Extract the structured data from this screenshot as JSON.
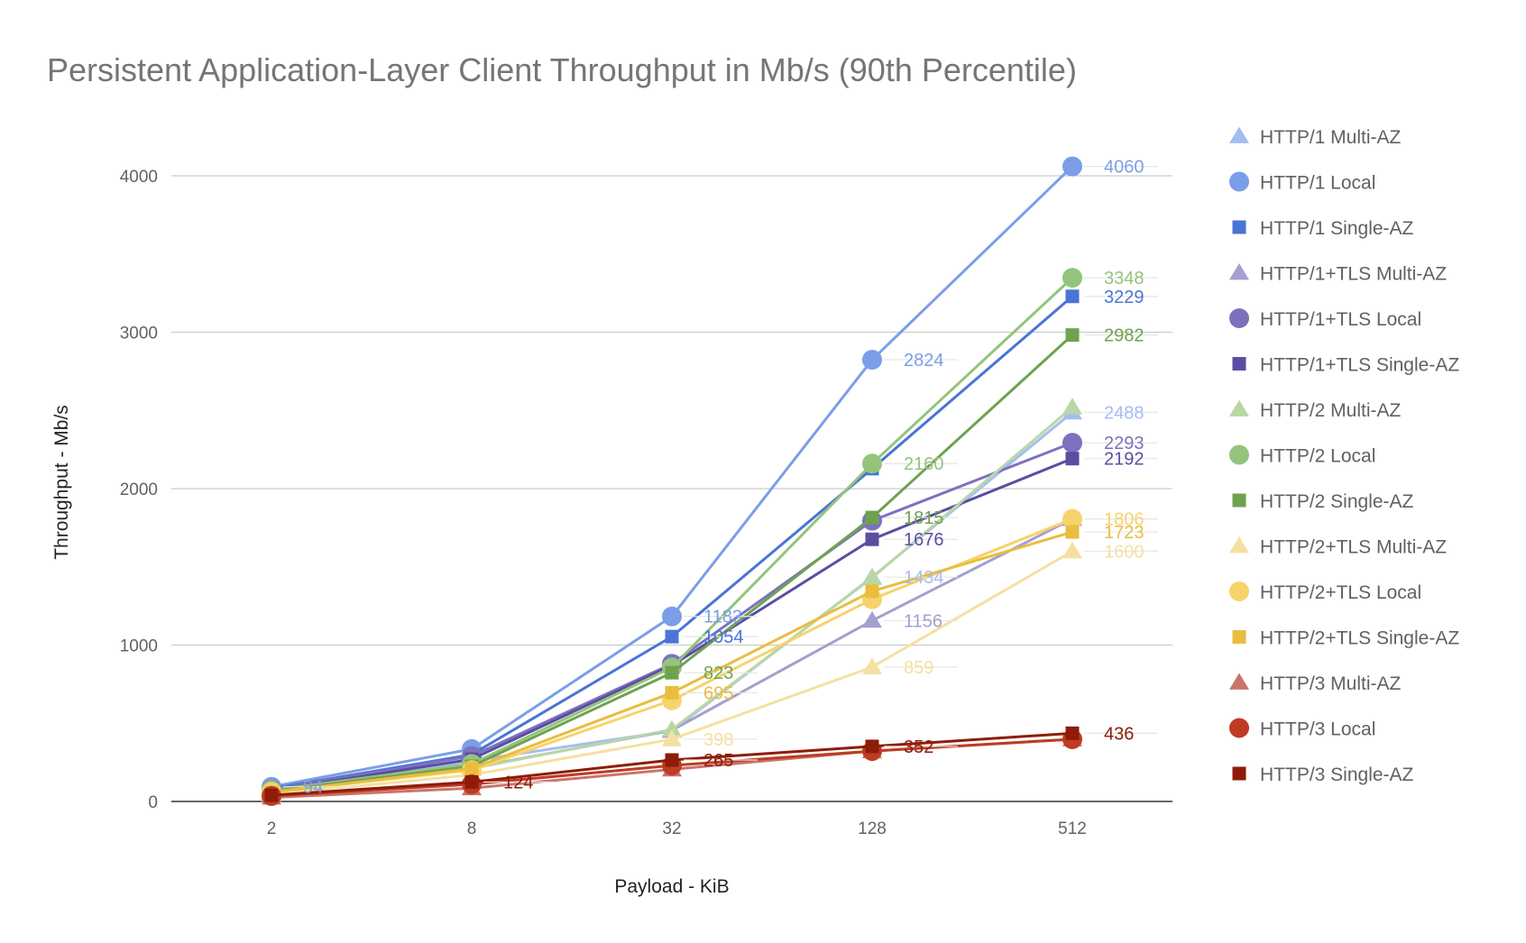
{
  "chart_data": {
    "type": "line",
    "title": "Persistent Application-Layer Client Throughput in Mb/s (90th Percentile)",
    "xlabel": "Payload - KiB",
    "ylabel": "Throughput - Mb/s",
    "categories": [
      "2",
      "8",
      "32",
      "128",
      "512"
    ],
    "ylim": [
      0,
      4000
    ],
    "yticks": [
      "0",
      "1000",
      "2000",
      "3000",
      "4000"
    ],
    "grid": true,
    "legend_position": "right",
    "series": [
      {
        "name": "HTTP/1 Multi-AZ",
        "color": "#a4bdf2",
        "marker": "triangle",
        "values": [
          60,
          260,
          451,
          1434,
          2488
        ]
      },
      {
        "name": "HTTP/1 Local",
        "color": "#7b9ee8",
        "marker": "circle",
        "values": [
          94,
          335,
          1183,
          2824,
          4060
        ]
      },
      {
        "name": "HTTP/1 Single-AZ",
        "color": "#4a74d6",
        "marker": "square",
        "values": [
          82,
          300,
          1054,
          2128,
          3229
        ]
      },
      {
        "name": "HTTP/1+TLS Multi-AZ",
        "color": "#a49fcf",
        "marker": "triangle",
        "values": [
          52,
          215,
          455,
          1156,
          1807
        ]
      },
      {
        "name": "HTTP/1+TLS Local",
        "color": "#7d71bf",
        "marker": "circle",
        "values": [
          75,
          290,
          880,
          1795,
          2293
        ]
      },
      {
        "name": "HTTP/1+TLS Single-AZ",
        "color": "#5a4ea2",
        "marker": "square",
        "values": [
          70,
          270,
          870,
          1676,
          2192
        ]
      },
      {
        "name": "HTTP/2 Multi-AZ",
        "color": "#b8d7a5",
        "marker": "triangle",
        "values": [
          55,
          210,
          460,
          1430,
          2520
        ]
      },
      {
        "name": "HTTP/2 Local",
        "color": "#94c47c",
        "marker": "circle",
        "values": [
          72,
          240,
          857,
          2160,
          3348
        ]
      },
      {
        "name": "HTTP/2 Single-AZ",
        "color": "#6fa24f",
        "marker": "square",
        "values": [
          65,
          225,
          823,
          1815,
          2982
        ]
      },
      {
        "name": "HTTP/2+TLS Multi-AZ",
        "color": "#f5e0a0",
        "marker": "triangle",
        "values": [
          45,
          170,
          398,
          859,
          1600
        ]
      },
      {
        "name": "HTTP/2+TLS Local",
        "color": "#f6d36b",
        "marker": "circle",
        "values": [
          60,
          200,
          647,
          1293,
          1806
        ]
      },
      {
        "name": "HTTP/2+TLS Single-AZ",
        "color": "#e9bd3e",
        "marker": "square",
        "values": [
          58,
          211,
          695,
          1344,
          1723
        ]
      },
      {
        "name": "HTTP/3 Multi-AZ",
        "color": "#c9746a",
        "marker": "triangle",
        "values": [
          25,
          85,
          205,
          322,
          398
        ]
      },
      {
        "name": "HTTP/3 Local",
        "color": "#bf3b24",
        "marker": "circle",
        "values": [
          35,
          110,
          230,
          322,
          398
        ]
      },
      {
        "name": "HTTP/3 Single-AZ",
        "color": "#8e1c08",
        "marker": "square",
        "values": [
          40,
          124,
          265,
          352,
          436
        ]
      }
    ],
    "visible_point_labels": [
      {
        "series": 1,
        "point": 0,
        "text": "94"
      },
      {
        "series": 1,
        "point": 2,
        "text": "1183"
      },
      {
        "series": 1,
        "point": 3,
        "text": "2824"
      },
      {
        "series": 1,
        "point": 4,
        "text": "4060"
      },
      {
        "series": 2,
        "point": 2,
        "text": "1054"
      },
      {
        "series": 2,
        "point": 4,
        "text": "3229"
      },
      {
        "series": 7,
        "point": 3,
        "text": "2160"
      },
      {
        "series": 7,
        "point": 4,
        "text": "3348"
      },
      {
        "series": 8,
        "point": 2,
        "text": "823"
      },
      {
        "series": 8,
        "point": 3,
        "text": "1815"
      },
      {
        "series": 8,
        "point": 4,
        "text": "2982"
      },
      {
        "series": 4,
        "point": 4,
        "text": "2293"
      },
      {
        "series": 5,
        "point": 3,
        "text": "1676"
      },
      {
        "series": 5,
        "point": 4,
        "text": "2192"
      },
      {
        "series": 0,
        "point": 3,
        "text": "1434"
      },
      {
        "series": 0,
        "point": 4,
        "text": "2488"
      },
      {
        "series": 3,
        "point": 3,
        "text": "1156"
      },
      {
        "series": 9,
        "point": 3,
        "text": "859"
      },
      {
        "series": 9,
        "point": 2,
        "text": "398"
      },
      {
        "series": 9,
        "point": 4,
        "text": "1600"
      },
      {
        "series": 10,
        "point": 4,
        "text": "1806"
      },
      {
        "series": 11,
        "point": 2,
        "text": "695"
      },
      {
        "series": 11,
        "point": 4,
        "text": "1723"
      },
      {
        "series": 14,
        "point": 1,
        "text": "124"
      },
      {
        "series": 14,
        "point": 2,
        "text": "265"
      },
      {
        "series": 14,
        "point": 3,
        "text": "352"
      },
      {
        "series": 14,
        "point": 4,
        "text": "436"
      }
    ]
  }
}
